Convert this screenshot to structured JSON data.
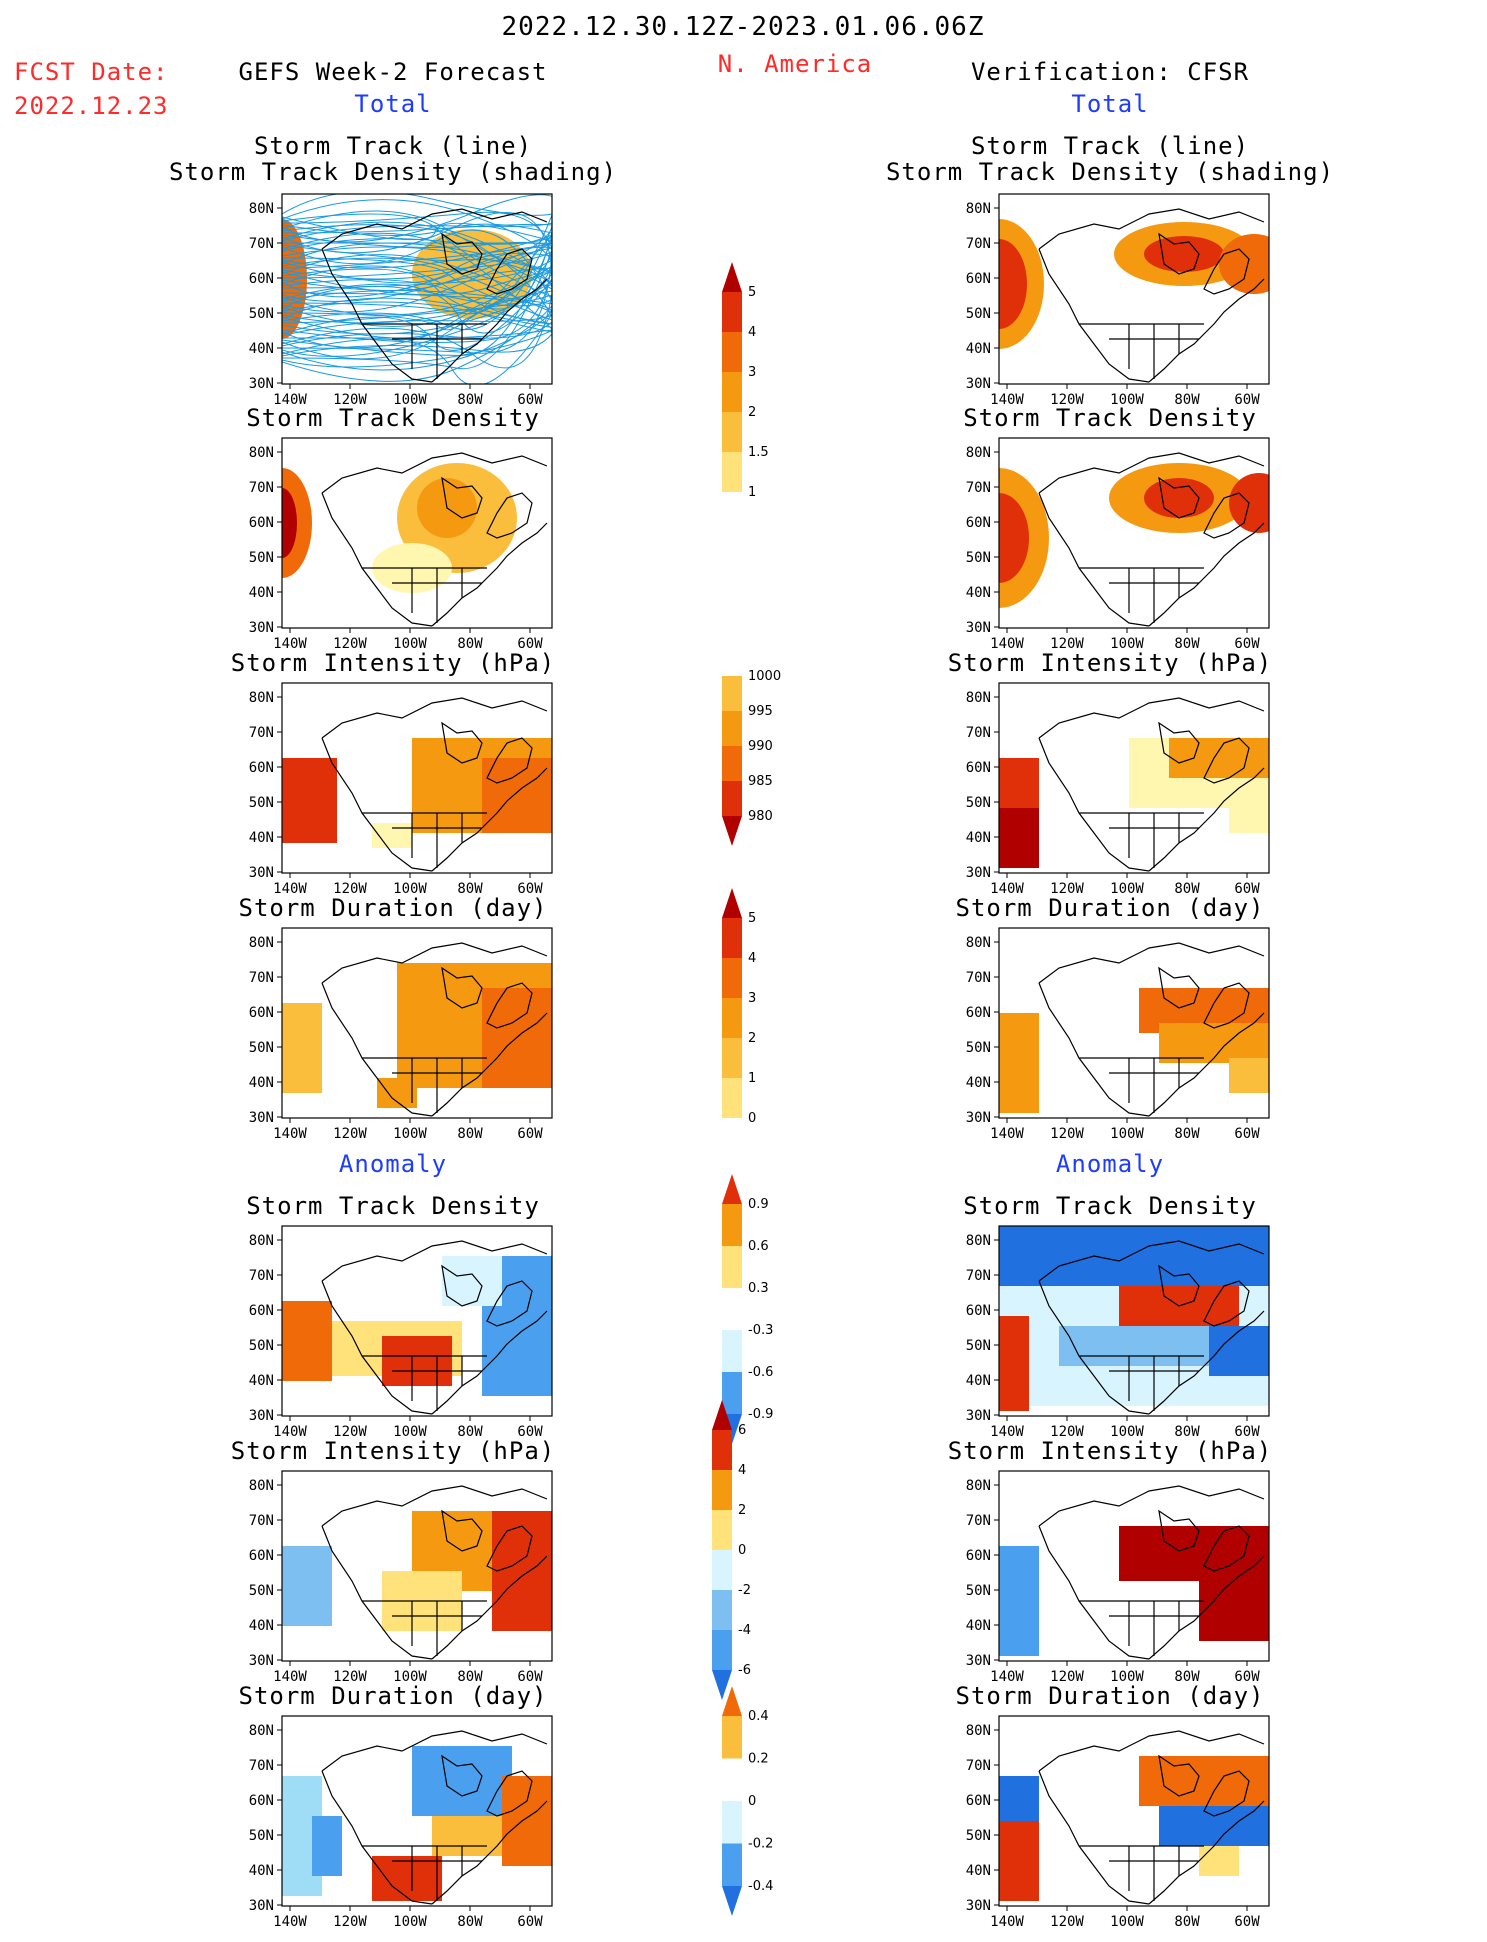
{
  "header": {
    "title": "2022.12.30.12Z-2023.01.06.06Z",
    "region": "N. America",
    "fcst_label": "FCST Date:",
    "fcst_date": "2022.12.23",
    "left_title": "GEFS Week-2 Forecast",
    "right_title": "Verification: CFSR",
    "left_total": "Total",
    "right_total": "Total",
    "left_anomaly": "Anomaly",
    "right_anomaly": "Anomaly"
  },
  "panel_titles": {
    "track_line": "Storm Track (line)",
    "track_density_shading": "Storm Track Density (shading)",
    "density": "Storm Track Density",
    "intensity": "Storm Intensity (hPa)",
    "duration": "Storm Duration (day)"
  },
  "axes": {
    "lat_labels": [
      "80N",
      "70N",
      "60N",
      "50N",
      "40N",
      "30N"
    ],
    "lon_labels": [
      "140W",
      "120W",
      "100W",
      "80W",
      "60W"
    ]
  },
  "colorbars": {
    "density": [
      "5",
      "4",
      "3",
      "2",
      "1.5",
      "1"
    ],
    "intensity": [
      "1000",
      "995",
      "990",
      "985",
      "980"
    ],
    "duration": [
      "5",
      "4",
      "3",
      "2",
      "1",
      "0"
    ],
    "density_anom": [
      "0.9",
      "0.6",
      "0.3",
      "-0.3",
      "-0.6",
      "-0.9"
    ],
    "intensity_anom": [
      "6",
      "4",
      "2",
      "0",
      "-2",
      "-4",
      "-6"
    ],
    "duration_anom": [
      "0.4",
      "0.2",
      "0",
      "-0.2",
      "-0.4"
    ]
  },
  "colors": {
    "warm": [
      "#fff7b0",
      "#ffe27a",
      "#fbbd3c",
      "#f59a10",
      "#f06a0a",
      "#e0300a",
      "#b00000"
    ],
    "cool": [
      "#d8f4ff",
      "#9fdcf5",
      "#7cbff0",
      "#4aa0ee",
      "#2070e0",
      "#1040c0"
    ],
    "tracks": "#1a9ae0",
    "title_red": "#ff2a2a",
    "title_blue": "#1e3cff"
  }
}
